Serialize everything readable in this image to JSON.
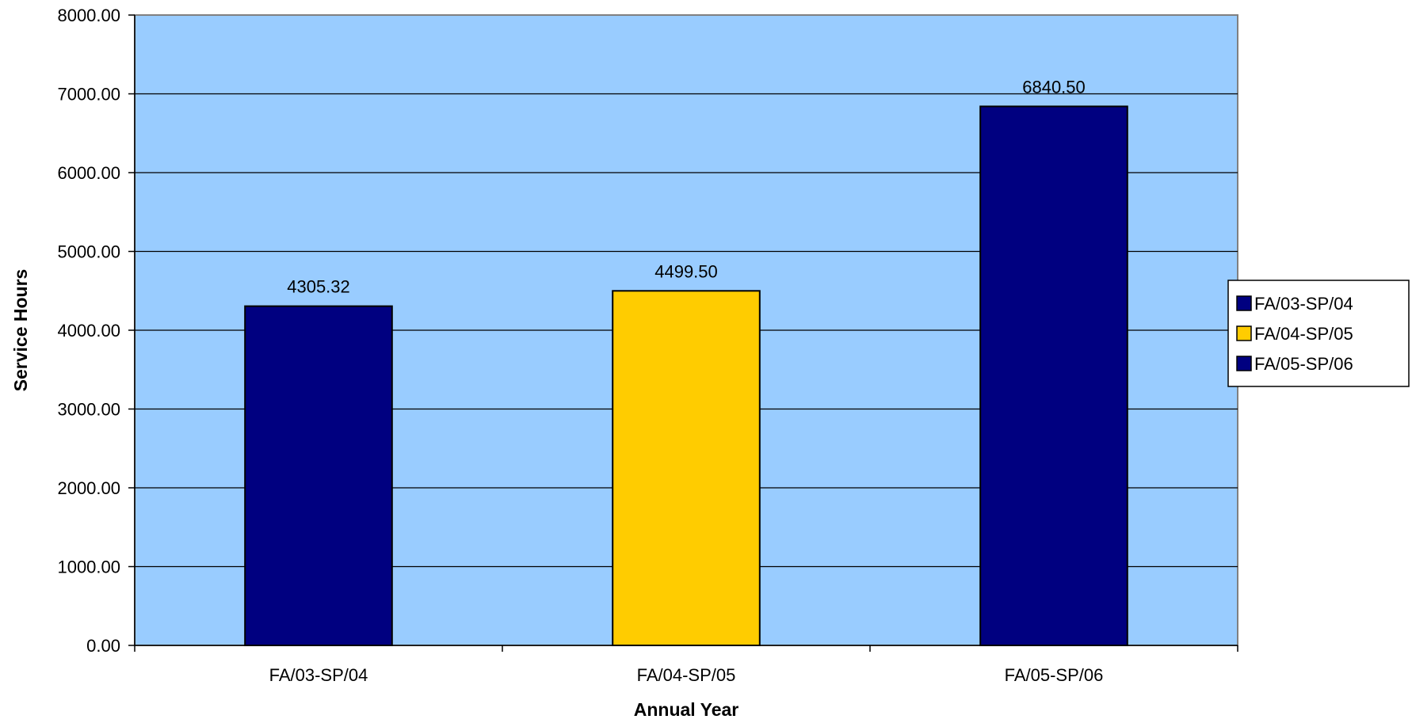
{
  "chart_data": {
    "type": "bar",
    "categories": [
      "FA/03-SP/04",
      "FA/04-SP/05",
      "FA/05-SP/06"
    ],
    "values": [
      4305.32,
      4499.5,
      6840.5
    ],
    "data_labels": [
      "4305.32",
      "4499.50",
      "6840.50"
    ],
    "colors": [
      "#000080",
      "#FFCC00",
      "#000080"
    ],
    "plot_background": "#99CCFF",
    "gridline_color": "#000000",
    "xlabel": "Annual Year",
    "ylabel": "Service Hours",
    "ylim": [
      0,
      8000
    ],
    "y_ticks": [
      0,
      1000,
      2000,
      3000,
      4000,
      5000,
      6000,
      7000,
      8000
    ],
    "y_tick_labels": [
      "0.00",
      "1000.00",
      "2000.00",
      "3000.00",
      "4000.00",
      "5000.00",
      "6000.00",
      "7000.00",
      "8000.00"
    ],
    "grid": true,
    "legend": {
      "placement": "right",
      "entries": [
        {
          "label": "FA/03-SP/04",
          "color": "#000080"
        },
        {
          "label": "FA/04-SP/05",
          "color": "#FFCC00"
        },
        {
          "label": "FA/05-SP/06",
          "color": "#000080"
        }
      ]
    }
  }
}
